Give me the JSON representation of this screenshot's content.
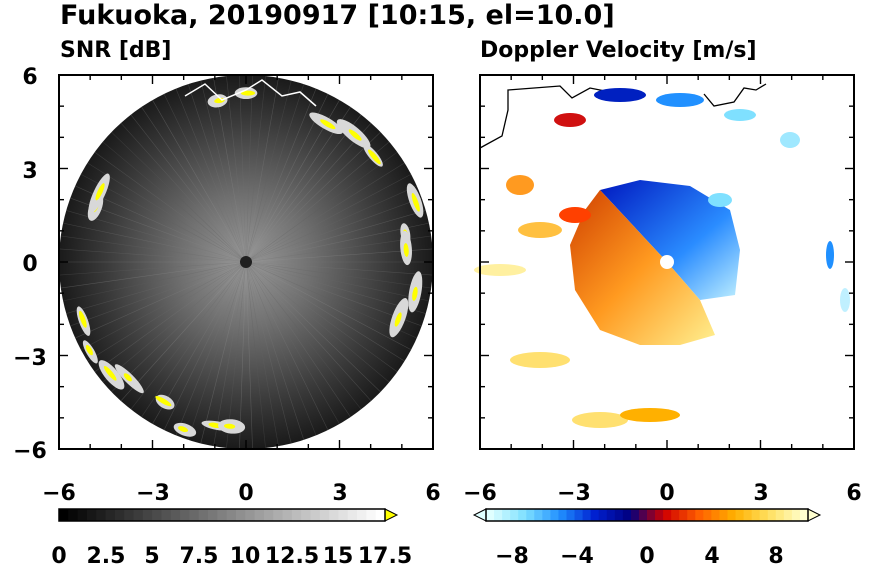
{
  "figure": {
    "title": "Fukuoka, 20190917 [10:15, el=10.0]"
  },
  "chart_data": [
    {
      "type": "heatmap",
      "title": "SNR [dB]",
      "xlim": [
        -6,
        6
      ],
      "ylim": [
        -6,
        6
      ],
      "x_ticks": [
        "−6",
        "−3",
        "0",
        "3",
        "6"
      ],
      "y_ticks": [
        "6",
        "3",
        "0",
        "−3",
        "−6"
      ],
      "colorbar": {
        "range": [
          0,
          17.5
        ],
        "extend": "max",
        "tick_labels": [
          "0",
          "2.5",
          "5",
          "7.5",
          "10",
          "12.5",
          "15",
          "17.5"
        ],
        "colors": [
          "#000000",
          "#333333",
          "#666666",
          "#999999",
          "#cccccc",
          "#ffffff",
          "#ffff00"
        ]
      }
    },
    {
      "type": "heatmap",
      "title": "Doppler Velocity [m/s]",
      "xlim": [
        -6,
        6
      ],
      "ylim": [
        -6,
        6
      ],
      "x_ticks": [
        "−6",
        "−3",
        "0",
        "3",
        "6"
      ],
      "y_ticks": [],
      "colorbar": {
        "range": [
          -10,
          10
        ],
        "extend": "both",
        "tick_labels": [
          "−8",
          "−4",
          "0",
          "4",
          "8"
        ],
        "colors": [
          "#e0ffff",
          "#7fe0ff",
          "#2090ff",
          "#0020d0",
          "#000080",
          "#d00000",
          "#ff6000",
          "#ffb000",
          "#ffe060",
          "#ffffd0"
        ]
      }
    }
  ]
}
